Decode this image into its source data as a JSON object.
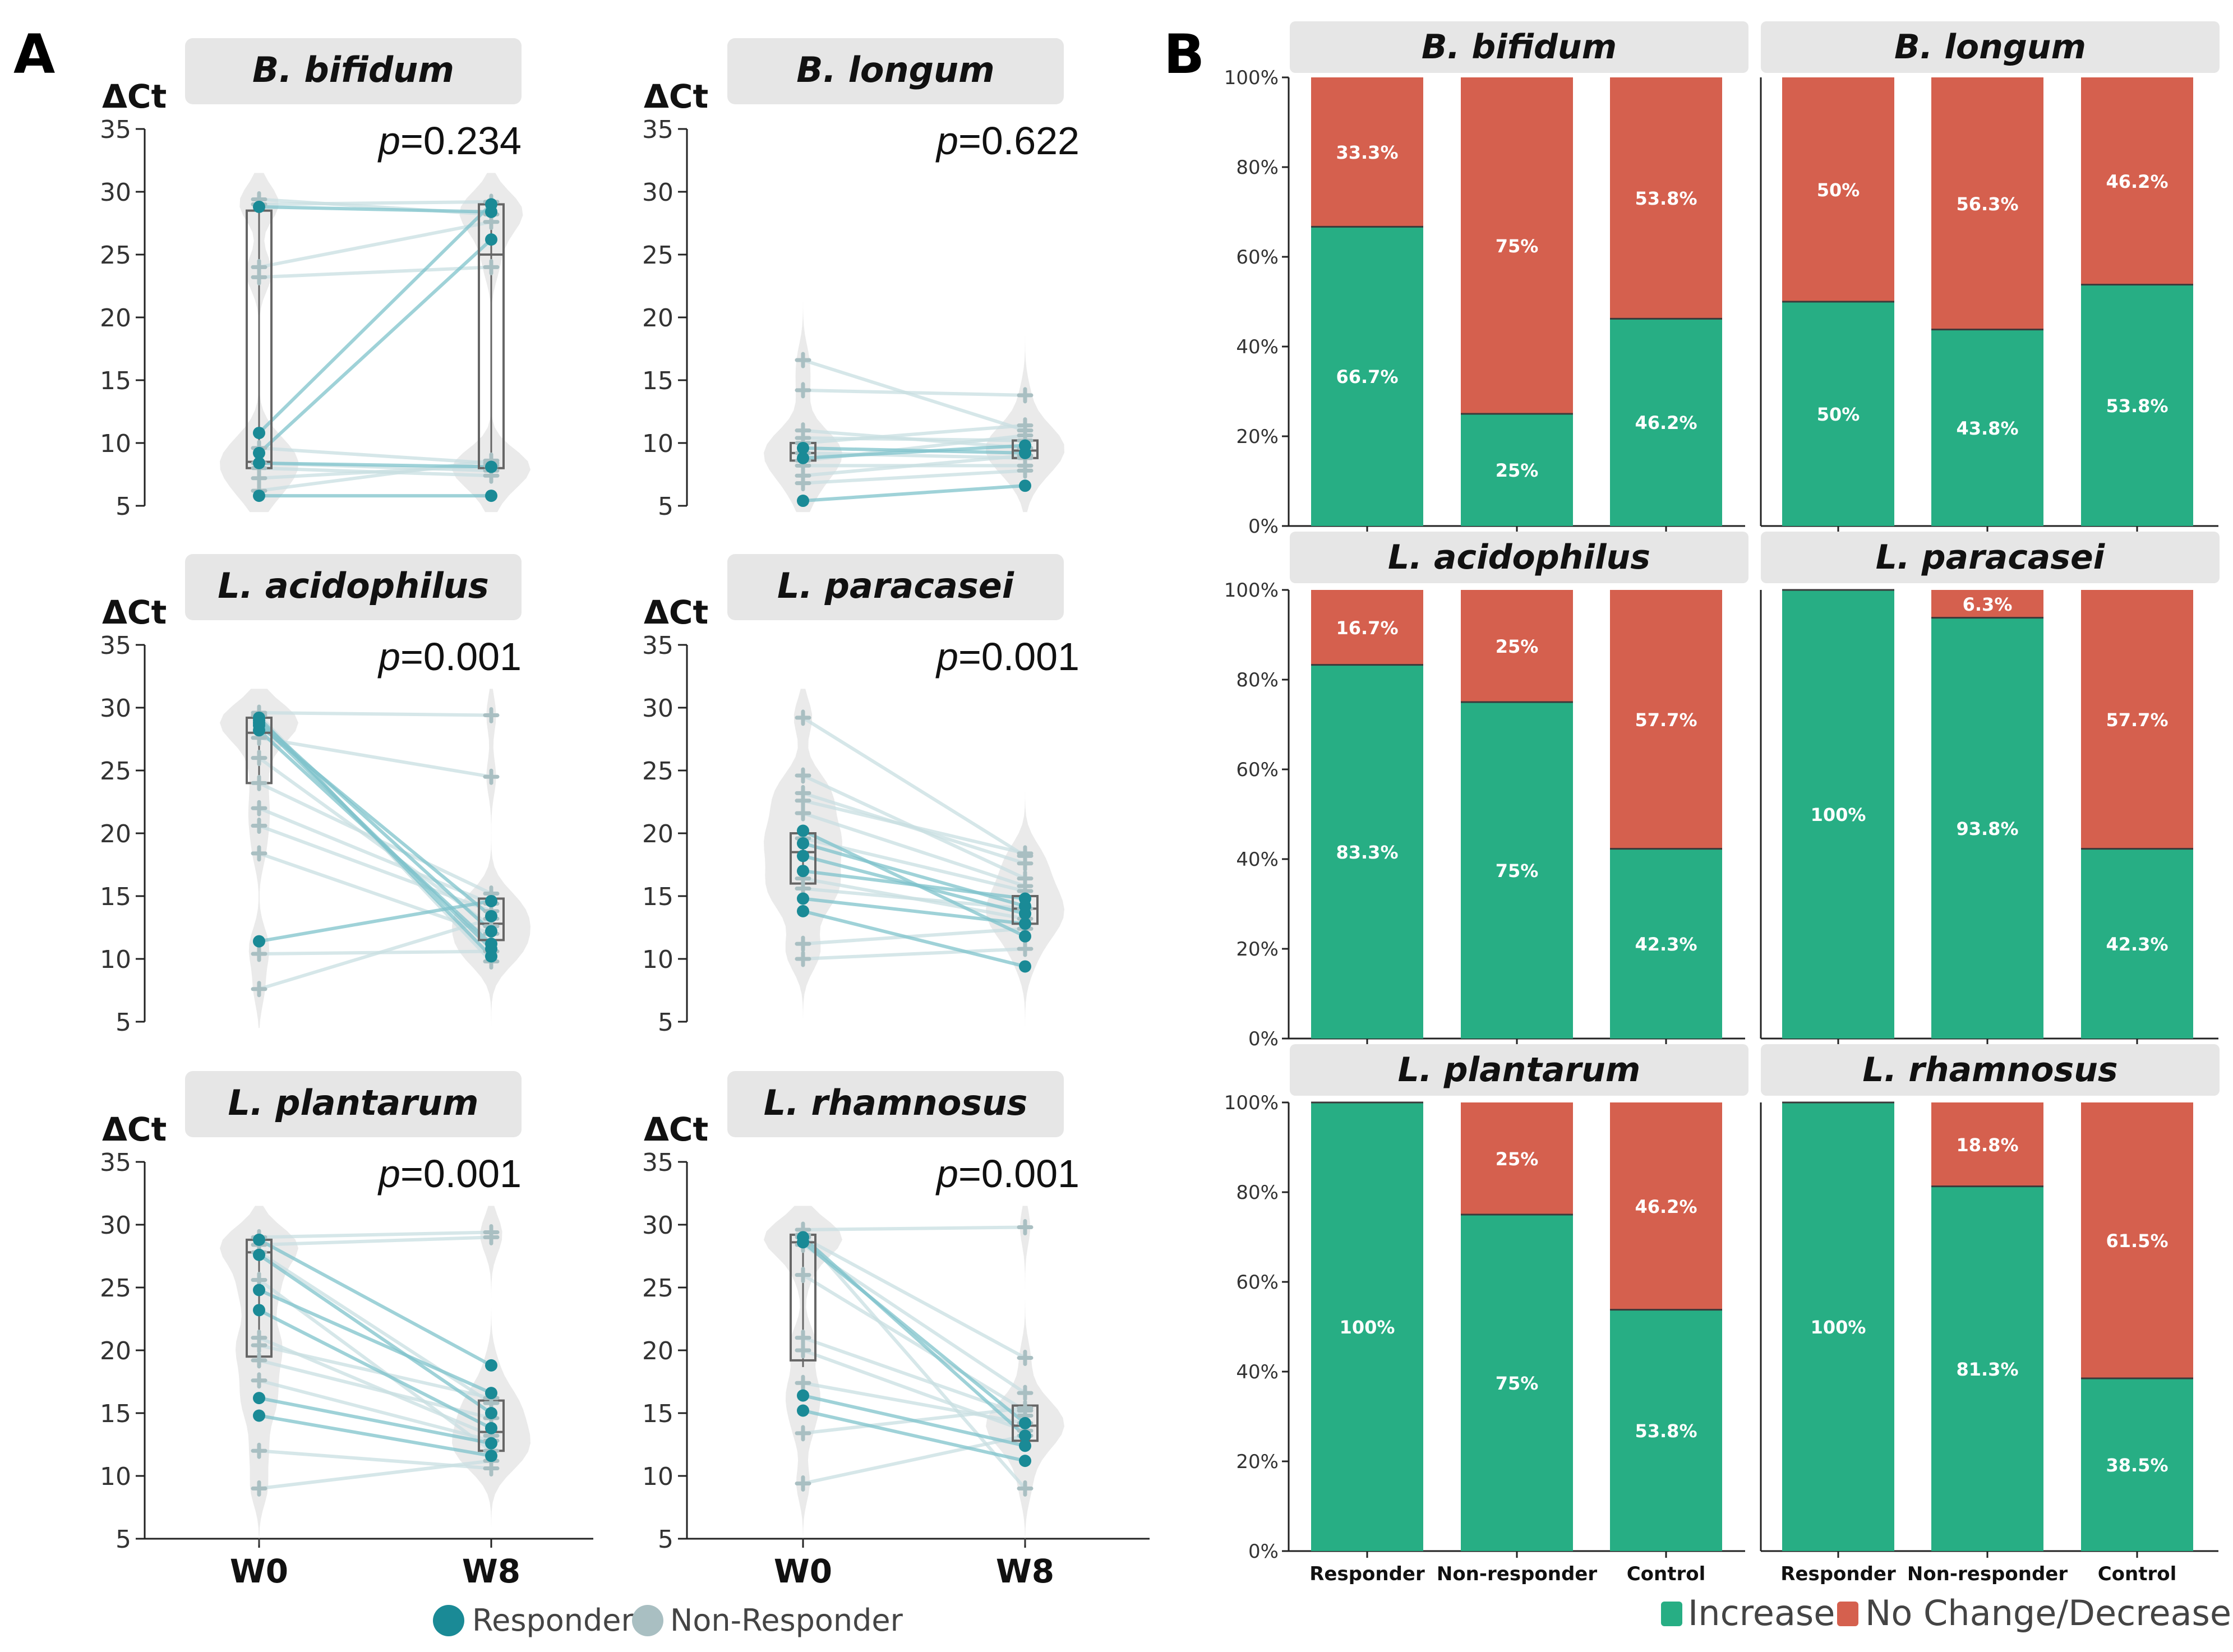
{
  "panel_labels": {
    "a": "A",
    "b": "B"
  },
  "panel_a": {
    "y_axis_label": "ΔCt",
    "p_prefix": "p",
    "x_categories": [
      "W0",
      "W8"
    ],
    "legend": [
      {
        "label": "Responder",
        "color": "#1a8a96"
      },
      {
        "label": "Non-Responder",
        "color": "#a9bfc2"
      }
    ]
  },
  "panel_b": {
    "x_categories": [
      "Responder",
      "Non-responder",
      "Control"
    ],
    "legend": [
      {
        "label": "Increase",
        "color": "#27ae84"
      },
      {
        "label": "No Change/Decrease",
        "color": "#d5604e"
      }
    ]
  },
  "colors": {
    "responder": "#1a8a96",
    "non_responder": "#a9bfc2",
    "line": "#7fc3cc",
    "violin": "#e6e6e6",
    "increase": "#27ae84",
    "decrease": "#d5604e",
    "strip": "#e6e6e6"
  },
  "chart_data": [
    {
      "type": "violin-paired",
      "title": "B. bifidum",
      "ylabel": "ΔCt",
      "ylim": [
        5,
        35
      ],
      "yticks": [
        5,
        10,
        15,
        20,
        25,
        30,
        35
      ],
      "categories": [
        "W0",
        "W8"
      ],
      "p_value": "=0.234",
      "box": [
        {
          "q1": 8,
          "median": 8.5,
          "q3": 28.5
        },
        {
          "q1": 8,
          "median": 25,
          "q3": 29
        }
      ],
      "responder_pairs": [
        [
          10.8,
          29
        ],
        [
          9.2,
          26.2
        ],
        [
          28.8,
          28.4
        ],
        [
          5.8,
          5.8
        ],
        [
          8.4,
          8.1
        ]
      ],
      "nonresponder_pairs": [
        [
          29.4,
          28.2
        ],
        [
          24,
          27.6
        ],
        [
          23.2,
          24
        ],
        [
          8.4,
          7.8
        ],
        [
          7.2,
          8.2
        ],
        [
          6.2,
          8.6
        ],
        [
          8,
          7.4
        ],
        [
          29,
          29.2
        ],
        [
          9.6,
          8.4
        ]
      ]
    },
    {
      "type": "violin-paired",
      "title": "B. longum",
      "ylabel": "ΔCt",
      "ylim": [
        5,
        35
      ],
      "yticks": [
        5,
        10,
        15,
        20,
        25,
        30,
        35
      ],
      "categories": [
        "W0",
        "W8"
      ],
      "p_value": "=0.622",
      "box": [
        {
          "q1": 8.6,
          "median": 9.2,
          "q3": 10
        },
        {
          "q1": 8.8,
          "median": 9.4,
          "q3": 10.2
        }
      ],
      "responder_pairs": [
        [
          5.4,
          6.6
        ],
        [
          9.6,
          9.2
        ],
        [
          8.8,
          9.8
        ]
      ],
      "nonresponder_pairs": [
        [
          16.6,
          11
        ],
        [
          14.2,
          13.8
        ],
        [
          11,
          9.6
        ],
        [
          10.4,
          10.2
        ],
        [
          9.2,
          8.8
        ],
        [
          8.2,
          8.2
        ],
        [
          7.4,
          9
        ],
        [
          6.8,
          7.8
        ],
        [
          10,
          11.4
        ],
        [
          8.6,
          10.6
        ]
      ]
    },
    {
      "type": "violin-paired",
      "title": "L. acidophilus",
      "ylabel": "ΔCt",
      "ylim": [
        5,
        35
      ],
      "yticks": [
        5,
        10,
        15,
        20,
        25,
        30,
        35
      ],
      "categories": [
        "W0",
        "W8"
      ],
      "p_value": "=0.001",
      "box": [
        {
          "q1": 24,
          "median": 28,
          "q3": 29.2
        },
        {
          "q1": 11.5,
          "median": 12.8,
          "q3": 14.8
        }
      ],
      "responder_pairs": [
        [
          29,
          12.2
        ],
        [
          28.6,
          13.4
        ],
        [
          28.2,
          11.2
        ],
        [
          29.2,
          10.2
        ],
        [
          11.4,
          14.6
        ],
        [
          28.8,
          10.8
        ]
      ],
      "nonresponder_pairs": [
        [
          29.6,
          29.4
        ],
        [
          27.6,
          24.5
        ],
        [
          24,
          15.2
        ],
        [
          20.6,
          13.8
        ],
        [
          18.4,
          12
        ],
        [
          7.6,
          13.2
        ],
        [
          10.4,
          10.6
        ],
        [
          29.4,
          9.8
        ],
        [
          22,
          14.4
        ],
        [
          26,
          12.6
        ]
      ]
    },
    {
      "type": "violin-paired",
      "title": "L. paracasei",
      "ylabel": "ΔCt",
      "ylim": [
        5,
        35
      ],
      "yticks": [
        5,
        10,
        15,
        20,
        25,
        30,
        35
      ],
      "categories": [
        "W0",
        "W8"
      ],
      "p_value": "=0.001",
      "box": [
        {
          "q1": 16,
          "median": 18.5,
          "q3": 20
        },
        {
          "q1": 12.8,
          "median": 14,
          "q3": 15
        }
      ],
      "responder_pairs": [
        [
          19.2,
          14.2
        ],
        [
          18.2,
          13.6
        ],
        [
          14.8,
          12.8
        ],
        [
          13.8,
          9.4
        ],
        [
          20.2,
          11.8
        ],
        [
          17,
          14.8
        ]
      ],
      "nonresponder_pairs": [
        [
          29.2,
          18.2
        ],
        [
          24.6,
          16.4
        ],
        [
          23.2,
          17.6
        ],
        [
          21.6,
          15.8
        ],
        [
          11.2,
          12.4
        ],
        [
          10,
          10.8
        ],
        [
          16.4,
          13.2
        ],
        [
          22.6,
          18.4
        ],
        [
          19.6,
          15.4
        ],
        [
          15.6,
          14
        ]
      ]
    },
    {
      "type": "violin-paired",
      "title": "L. plantarum",
      "ylabel": "ΔCt",
      "ylim": [
        5,
        35
      ],
      "yticks": [
        5,
        10,
        15,
        20,
        25,
        30,
        35
      ],
      "categories": [
        "W0",
        "W8"
      ],
      "p_value": "=0.001",
      "box": [
        {
          "q1": 19.5,
          "median": 27.8,
          "q3": 28.8
        },
        {
          "q1": 12,
          "median": 13.5,
          "q3": 16
        }
      ],
      "responder_pairs": [
        [
          28.8,
          18.8
        ],
        [
          24.8,
          16.6
        ],
        [
          23.2,
          13.8
        ],
        [
          16.2,
          12.6
        ],
        [
          14.8,
          11.6
        ],
        [
          27.6,
          15
        ]
      ],
      "nonresponder_pairs": [
        [
          29,
          29.4
        ],
        [
          28.4,
          29
        ],
        [
          27.8,
          15.8
        ],
        [
          25.6,
          12
        ],
        [
          21,
          13.2
        ],
        [
          19.2,
          14.6
        ],
        [
          17.6,
          12.8
        ],
        [
          12,
          10.6
        ],
        [
          9,
          11.2
        ],
        [
          20.4,
          16.2
        ]
      ]
    },
    {
      "type": "violin-paired",
      "title": "L. rhamnosus",
      "ylabel": "ΔCt",
      "ylim": [
        5,
        35
      ],
      "yticks": [
        5,
        10,
        15,
        20,
        25,
        30,
        35
      ],
      "categories": [
        "W0",
        "W8"
      ],
      "p_value": "=0.001",
      "box": [
        {
          "q1": 19.2,
          "median": 28.6,
          "q3": 29.2
        },
        {
          "q1": 12.8,
          "median": 14,
          "q3": 15.6
        }
      ],
      "responder_pairs": [
        [
          29,
          13.2
        ],
        [
          28.6,
          14.2
        ],
        [
          16.4,
          12.4
        ],
        [
          15.2,
          11.2
        ]
      ],
      "nonresponder_pairs": [
        [
          29.6,
          29.8
        ],
        [
          29,
          19.4
        ],
        [
          28.4,
          16.6
        ],
        [
          21,
          14.8
        ],
        [
          20,
          13.6
        ],
        [
          13.4,
          15.4
        ],
        [
          9.4,
          13.2
        ],
        [
          29.2,
          9
        ],
        [
          26,
          15.2
        ],
        [
          17.4,
          14.2
        ]
      ]
    },
    {
      "type": "bar",
      "stacked": true,
      "percent": true,
      "title": "B. bifidum",
      "categories": [
        "Responder",
        "Non-responder",
        "Control"
      ],
      "series": [
        {
          "name": "Increase",
          "values": [
            66.7,
            25,
            46.2
          ],
          "labels": [
            "66.7%",
            "25%",
            "46.2%"
          ]
        },
        {
          "name": "No Change/Decrease",
          "values": [
            33.3,
            75,
            53.8
          ],
          "labels": [
            "33.3%",
            "75%",
            "53.8%"
          ]
        }
      ],
      "ylim": [
        0,
        100
      ],
      "yticks": [
        "0%",
        "20%",
        "40%",
        "60%",
        "80%",
        "100%"
      ]
    },
    {
      "type": "bar",
      "stacked": true,
      "percent": true,
      "title": "B. longum",
      "categories": [
        "Responder",
        "Non-responder",
        "Control"
      ],
      "series": [
        {
          "name": "Increase",
          "values": [
            50,
            43.8,
            53.8
          ],
          "labels": [
            "50%",
            "43.8%",
            "53.8%"
          ]
        },
        {
          "name": "No Change/Decrease",
          "values": [
            50,
            56.3,
            46.2
          ],
          "labels": [
            "50%",
            "56.3%",
            "46.2%"
          ]
        }
      ],
      "ylim": [
        0,
        100
      ],
      "yticks": []
    },
    {
      "type": "bar",
      "stacked": true,
      "percent": true,
      "title": "L. acidophilus",
      "categories": [
        "Responder",
        "Non-responder",
        "Control"
      ],
      "series": [
        {
          "name": "Increase",
          "values": [
            83.3,
            75,
            42.3
          ],
          "labels": [
            "83.3%",
            "75%",
            "42.3%"
          ]
        },
        {
          "name": "No Change/Decrease",
          "values": [
            16.7,
            25,
            57.7
          ],
          "labels": [
            "16.7%",
            "25%",
            "57.7%"
          ]
        }
      ],
      "ylim": [
        0,
        100
      ],
      "yticks": [
        "0%",
        "20%",
        "40%",
        "60%",
        "80%",
        "100%"
      ]
    },
    {
      "type": "bar",
      "stacked": true,
      "percent": true,
      "title": "L. paracasei",
      "categories": [
        "Responder",
        "Non-responder",
        "Control"
      ],
      "series": [
        {
          "name": "Increase",
          "values": [
            100,
            93.8,
            42.3
          ],
          "labels": [
            "100%",
            "93.8%",
            "42.3%"
          ]
        },
        {
          "name": "No Change/Decrease",
          "values": [
            0,
            6.3,
            57.7
          ],
          "labels": [
            "",
            "6.3%",
            "57.7%"
          ]
        }
      ],
      "ylim": [
        0,
        100
      ],
      "yticks": []
    },
    {
      "type": "bar",
      "stacked": true,
      "percent": true,
      "title": "L. plantarum",
      "categories": [
        "Responder",
        "Non-responder",
        "Control"
      ],
      "series": [
        {
          "name": "Increase",
          "values": [
            100,
            75,
            53.8
          ],
          "labels": [
            "100%",
            "75%",
            "53.8%"
          ]
        },
        {
          "name": "No Change/Decrease",
          "values": [
            0,
            25,
            46.2
          ],
          "labels": [
            "",
            "25%",
            "46.2%"
          ]
        }
      ],
      "ylim": [
        0,
        100
      ],
      "yticks": [
        "0%",
        "20%",
        "40%",
        "60%",
        "80%",
        "100%"
      ],
      "show_x_labels": true
    },
    {
      "type": "bar",
      "stacked": true,
      "percent": true,
      "title": "L. rhamnosus",
      "categories": [
        "Responder",
        "Non-responder",
        "Control"
      ],
      "series": [
        {
          "name": "Increase",
          "values": [
            100,
            81.3,
            38.5
          ],
          "labels": [
            "100%",
            "81.3%",
            "38.5%"
          ]
        },
        {
          "name": "No Change/Decrease",
          "values": [
            0,
            18.8,
            61.5
          ],
          "labels": [
            "",
            "18.8%",
            "61.5%"
          ]
        }
      ],
      "ylim": [
        0,
        100
      ],
      "yticks": [],
      "show_x_labels": true
    }
  ]
}
